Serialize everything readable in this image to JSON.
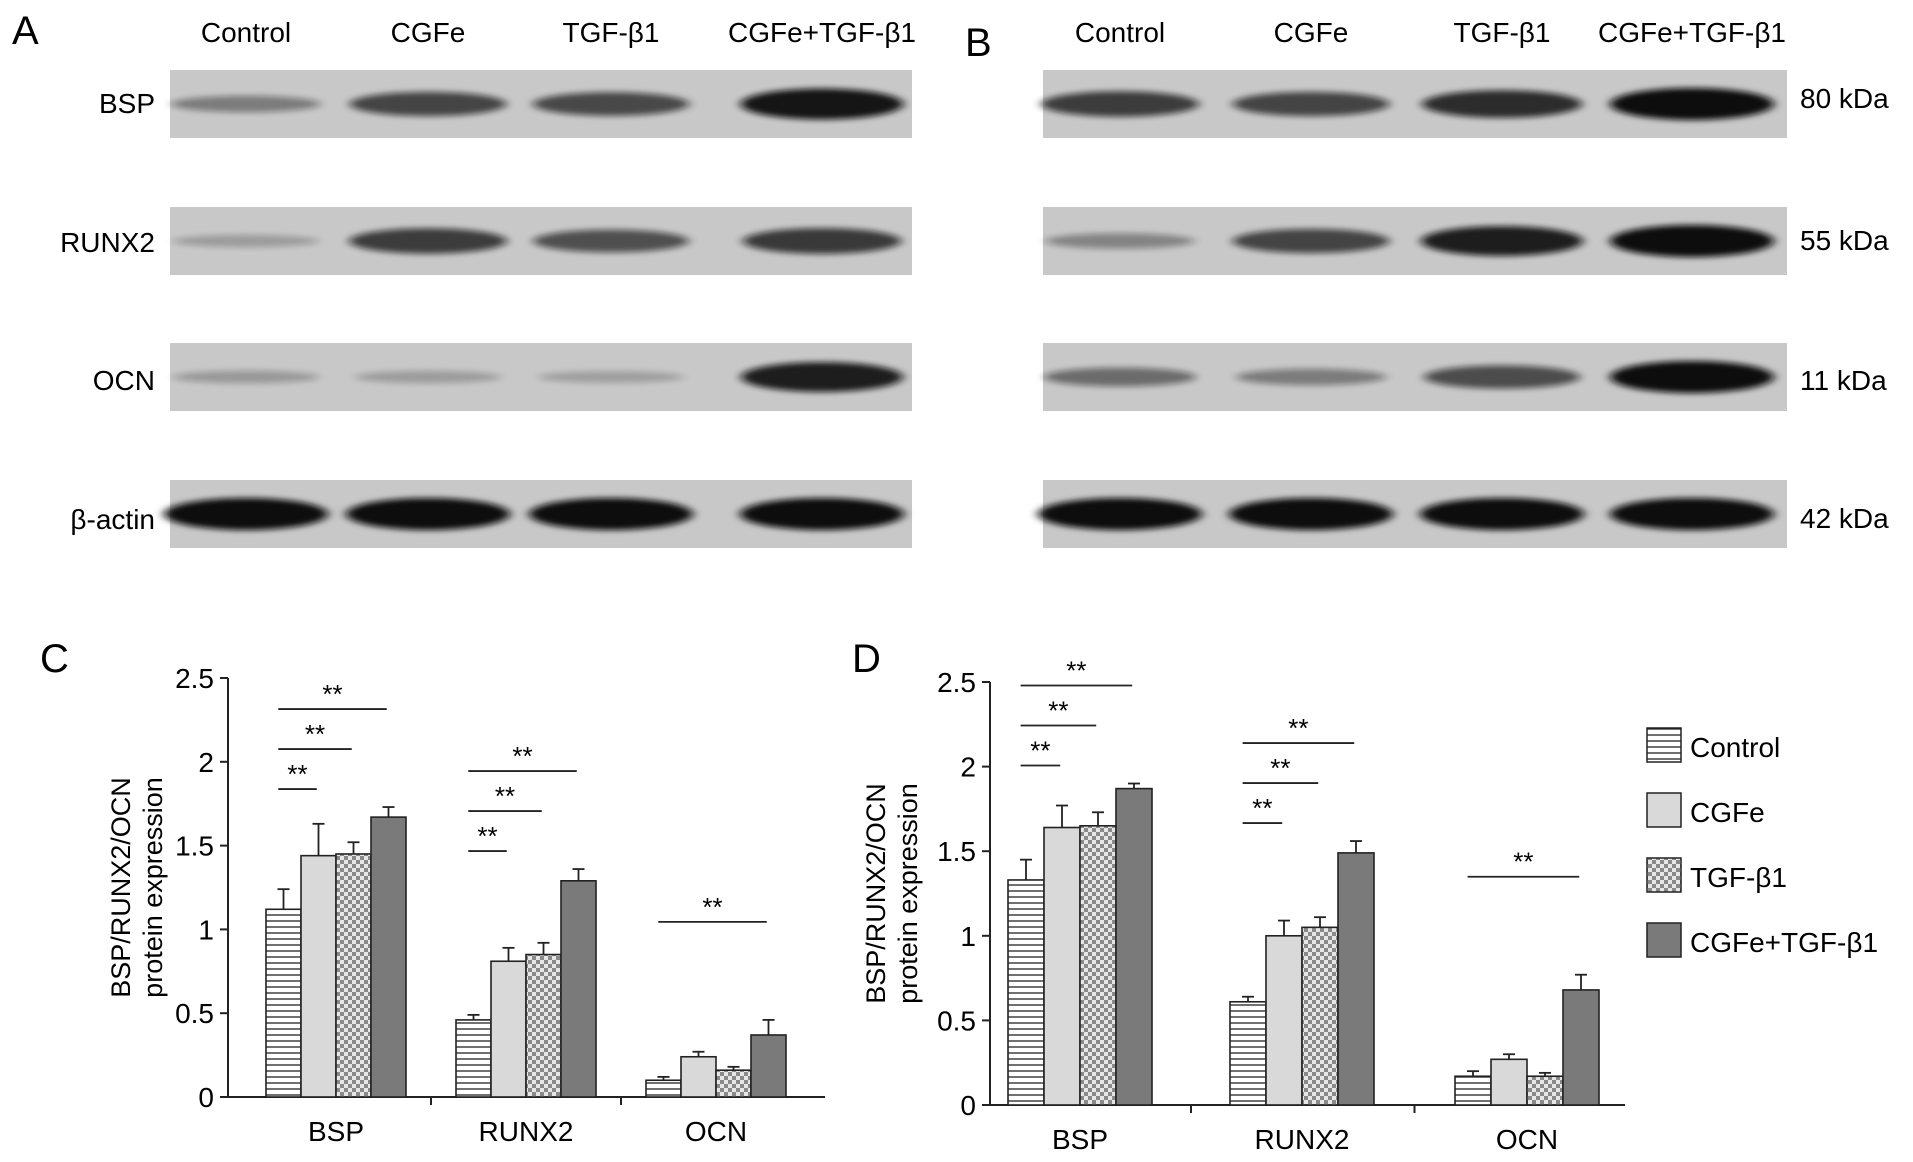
{
  "panels": {
    "A": {
      "letter": "A",
      "lanes": [
        "Control",
        "CGFe",
        "TGF-β1",
        "CGFe+TGF-β1"
      ],
      "rows": [
        "BSP",
        "RUNX2",
        "OCN",
        "β-actin"
      ]
    },
    "B": {
      "letter": "B",
      "lanes": [
        "Control",
        "CGFe",
        "TGF-β1",
        "CGFe+TGF-β1"
      ],
      "sizes": [
        "80 kDa",
        "55 kDa",
        "11 kDa",
        "42 kDa"
      ]
    },
    "C": {
      "letter": "C"
    },
    "D": {
      "letter": "D"
    }
  },
  "blot_intensity": {
    "A": [
      [
        0.3,
        0.65,
        0.62,
        0.95
      ],
      [
        0.1,
        0.7,
        0.58,
        0.72
      ],
      [
        0.12,
        0.1,
        0.08,
        0.9
      ],
      [
        1.0,
        1.0,
        1.0,
        1.0
      ]
    ],
    "B": [
      [
        0.7,
        0.65,
        0.8,
        1.0
      ],
      [
        0.25,
        0.65,
        0.9,
        1.0
      ],
      [
        0.4,
        0.3,
        0.6,
        1.0
      ],
      [
        1.0,
        1.0,
        1.0,
        1.0
      ]
    ]
  },
  "legend": {
    "entries": [
      "Control",
      "CGFe",
      "TGF-β1",
      "CGFe+TGF-β1"
    ]
  },
  "colors": {
    "control_fill": "#ffffff",
    "cgfe_fill": "#d9d9d9",
    "tgf_fill": "#d0d0d0",
    "combo_fill": "#7a7a7a",
    "blot_background": "#c8c8c8",
    "band": "#101010"
  },
  "chart_data": [
    {
      "panel": "C",
      "type": "bar",
      "categories": [
        "BSP",
        "RUNX2",
        "OCN"
      ],
      "ylabel": "BSP/RUNX2/OCN protein expression",
      "ylim": [
        0,
        2.5
      ],
      "yticks": [
        "0",
        "0.5",
        "1",
        "1.5",
        "2",
        "2.5"
      ],
      "grid": false,
      "series": [
        {
          "name": "Control",
          "values": [
            1.12,
            0.46,
            0.1
          ],
          "errors": [
            0.12,
            0.03,
            0.02
          ]
        },
        {
          "name": "CGFe",
          "values": [
            1.44,
            0.81,
            0.24
          ],
          "errors": [
            0.19,
            0.08,
            0.03
          ]
        },
        {
          "name": "TGF-β1",
          "values": [
            1.45,
            0.85,
            0.16
          ],
          "errors": [
            0.07,
            0.07,
            0.02
          ]
        },
        {
          "name": "CGFe+TGF-β1",
          "values": [
            1.67,
            1.29,
            0.37
          ],
          "errors": [
            0.06,
            0.07,
            0.09
          ]
        }
      ],
      "significance": [
        {
          "category": 0,
          "from": 0,
          "to": 1,
          "label": "**"
        },
        {
          "category": 0,
          "from": 0,
          "to": 2,
          "label": "**"
        },
        {
          "category": 0,
          "from": 0,
          "to": 3,
          "label": "**"
        },
        {
          "category": 1,
          "from": 0,
          "to": 1,
          "label": "**"
        },
        {
          "category": 1,
          "from": 0,
          "to": 2,
          "label": "**"
        },
        {
          "category": 1,
          "from": 0,
          "to": 3,
          "label": "**"
        },
        {
          "category": 2,
          "from": 0,
          "to": 3,
          "label": "**"
        }
      ]
    },
    {
      "panel": "D",
      "type": "bar",
      "categories": [
        "BSP",
        "RUNX2",
        "OCN"
      ],
      "ylabel": "BSP/RUNX2/OCN protein expression",
      "ylim": [
        0,
        2.5
      ],
      "yticks": [
        "0",
        "0.5",
        "1",
        "1.5",
        "2",
        "2.5"
      ],
      "grid": false,
      "legend": "right",
      "series": [
        {
          "name": "Control",
          "values": [
            1.33,
            0.61,
            0.17
          ],
          "errors": [
            0.12,
            0.03,
            0.03
          ]
        },
        {
          "name": "CGFe",
          "values": [
            1.64,
            1.0,
            0.27
          ],
          "errors": [
            0.13,
            0.09,
            0.03
          ]
        },
        {
          "name": "TGF-β1",
          "values": [
            1.65,
            1.05,
            0.17
          ],
          "errors": [
            0.08,
            0.06,
            0.02
          ]
        },
        {
          "name": "CGFe+TGF-β1",
          "values": [
            1.87,
            1.49,
            0.68
          ],
          "errors": [
            0.03,
            0.07,
            0.09
          ]
        }
      ],
      "significance": [
        {
          "category": 0,
          "from": 0,
          "to": 1,
          "label": "**"
        },
        {
          "category": 0,
          "from": 0,
          "to": 2,
          "label": "**"
        },
        {
          "category": 0,
          "from": 0,
          "to": 3,
          "label": "**"
        },
        {
          "category": 1,
          "from": 0,
          "to": 1,
          "label": "**"
        },
        {
          "category": 1,
          "from": 0,
          "to": 2,
          "label": "**"
        },
        {
          "category": 1,
          "from": 0,
          "to": 3,
          "label": "**"
        },
        {
          "category": 2,
          "from": 0,
          "to": 3,
          "label": "**"
        }
      ]
    }
  ]
}
